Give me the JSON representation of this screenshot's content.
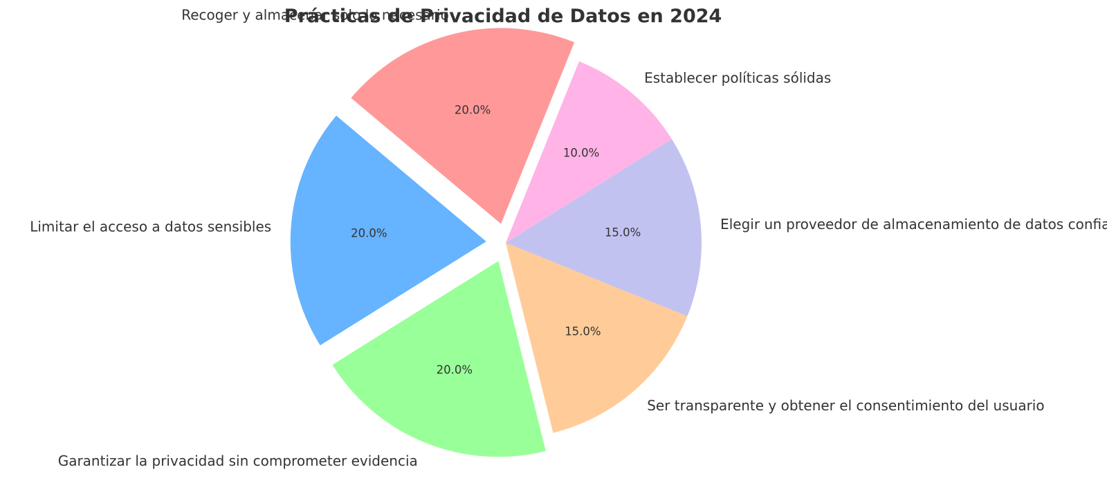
{
  "chart_data": {
    "type": "pie",
    "title": "Prácticas de Privacidad de Datos en 2024",
    "start_angle_deg": 140,
    "direction": "clockwise",
    "slices": [
      {
        "label": "Recoger y almacenar solo lo necesario",
        "value": 20,
        "pct_label": "20.0%",
        "color": "#ff9999",
        "exploded": true
      },
      {
        "label": "Establecer políticas sólidas",
        "value": 10,
        "pct_label": "10.0%",
        "color": "#ffb3e6",
        "exploded": false
      },
      {
        "label": "Elegir un proveedor de almacenamiento de datos confiable",
        "value": 15,
        "pct_label": "15.0%",
        "color": "#c2c2f0",
        "exploded": false
      },
      {
        "label": "Ser transparente y obtener el consentimiento del usuario",
        "value": 15,
        "pct_label": "15.0%",
        "color": "#ffcc99",
        "exploded": false
      },
      {
        "label": "Garantizar la privacidad sin comprometer evidencia",
        "value": 20,
        "pct_label": "20.0%",
        "color": "#99ff99",
        "exploded": true
      },
      {
        "label": "Limitar el acceso a datos sensibles",
        "value": 20,
        "pct_label": "20.0%",
        "color": "#66b3ff",
        "exploded": true
      }
    ]
  }
}
